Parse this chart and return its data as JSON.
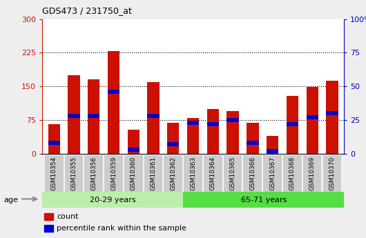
{
  "title": "GDS473 / 231750_at",
  "categories": [
    "GSM10354",
    "GSM10355",
    "GSM10356",
    "GSM10359",
    "GSM10360",
    "GSM10361",
    "GSM10362",
    "GSM10363",
    "GSM10364",
    "GSM10365",
    "GSM10366",
    "GSM10367",
    "GSM10368",
    "GSM10369",
    "GSM10370"
  ],
  "count_values": [
    65,
    175,
    165,
    228,
    53,
    160,
    68,
    80,
    100,
    95,
    68,
    40,
    128,
    148,
    162
  ],
  "percentile_values": [
    8,
    28,
    28,
    46,
    3,
    28,
    7,
    23,
    22,
    25,
    8,
    2,
    22,
    27,
    30
  ],
  "group1_label": "20-29 years",
  "group2_label": "65-71 years",
  "group1_count": 7,
  "group2_count": 8,
  "group1_color": "#bbeeaa",
  "group2_color": "#55dd44",
  "bar_color_red": "#cc1100",
  "bar_color_blue": "#0000cc",
  "ylim_left": [
    0,
    300
  ],
  "ylim_right": [
    0,
    100
  ],
  "yticks_left": [
    0,
    75,
    150,
    225,
    300
  ],
  "yticks_right": [
    0,
    25,
    50,
    75,
    100
  ],
  "ylabel_left_color": "#cc1100",
  "ylabel_right_color": "#0000bb",
  "legend_label_red": "count",
  "legend_label_blue": "percentile rank within the sample",
  "age_label": "age",
  "xtick_bg": "#cccccc",
  "bar_width": 0.6,
  "fig_bg": "#eeeeee"
}
